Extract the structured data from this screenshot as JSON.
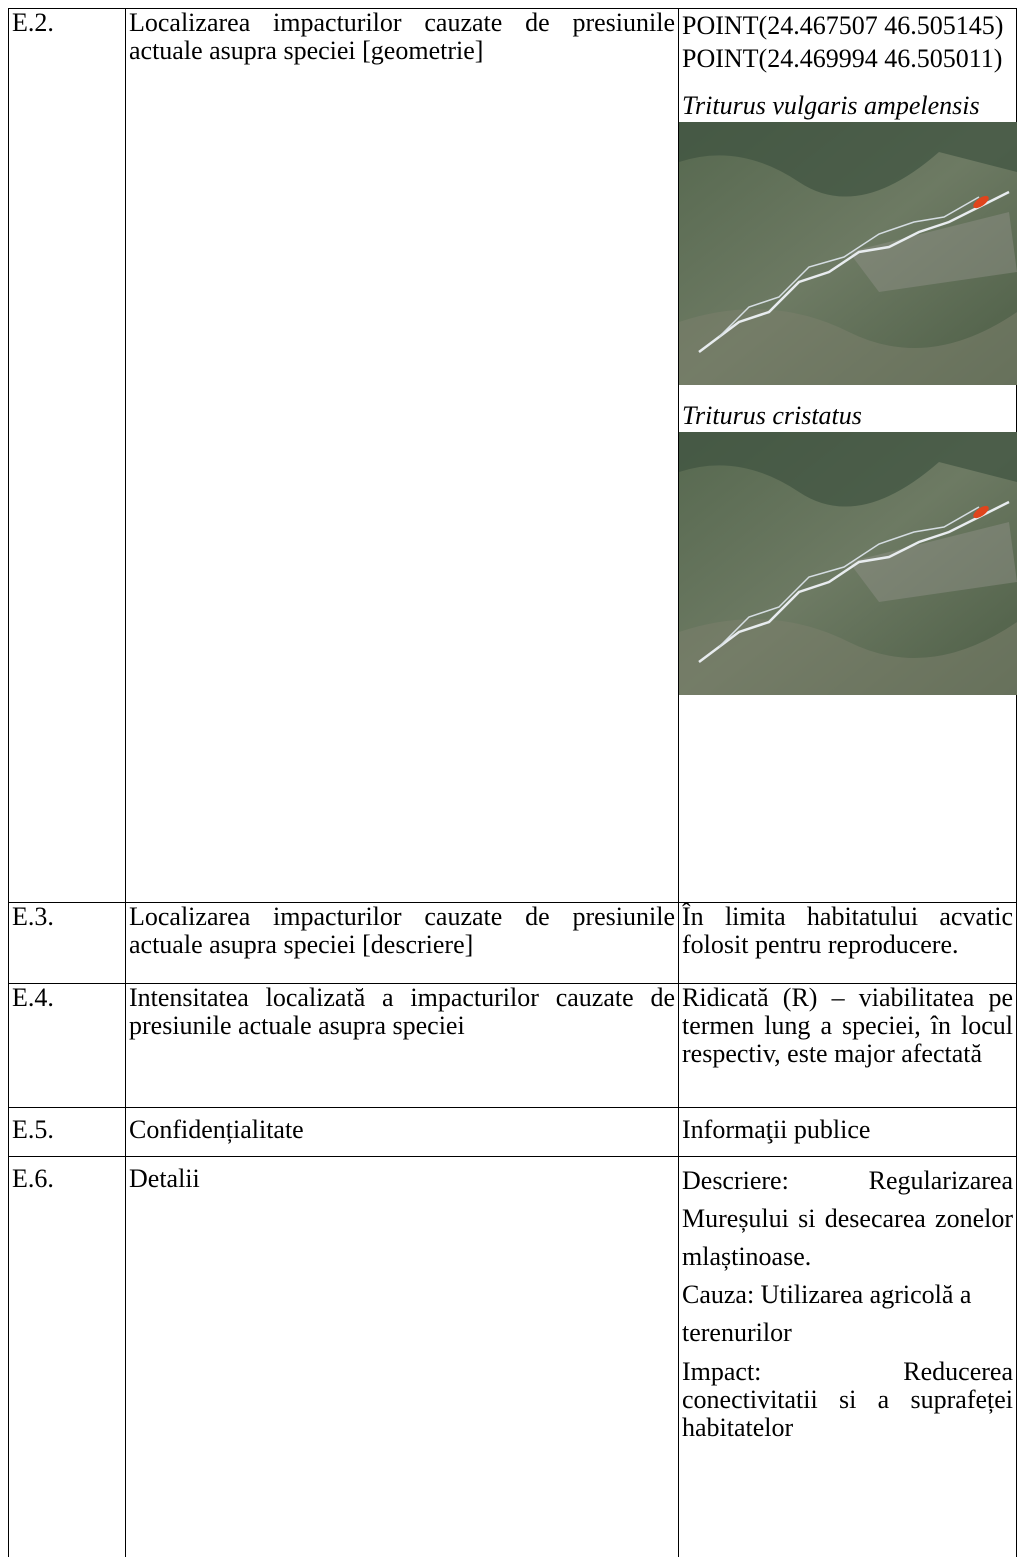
{
  "table": {
    "rows": [
      {
        "code": "E.2.",
        "label": "Localizarea impacturilor cauzate de presiunile actuale asupra speciei [geometrie]",
        "points": [
          "POINT(24.467507 46.505145)",
          "POINT(24.469994 46.505011)"
        ],
        "maps": [
          {
            "caption": "Triturus vulgaris ampelensis"
          },
          {
            "caption": "Triturus cristatus"
          }
        ]
      },
      {
        "code": "E.3.",
        "label": "Localizarea impacturilor cauzate de presiunile actuale asupra speciei [descriere]",
        "value": "În limita habitatului acvatic folosit pentru reproducere."
      },
      {
        "code": "E.4.",
        "label": "Intensitatea localizată a impacturilor cauzate de presiunile actuale asupra speciei",
        "value": "Ridicată (R) – viabilitatea pe termen lung a speciei, în locul respectiv, este major afectată"
      },
      {
        "code": "E.5.",
        "label": "Confidențialitate",
        "value": "Informaţii publice"
      },
      {
        "code": "E.6.",
        "label": "Detalii",
        "details": [
          "Descriere: Regularizarea Mureșului si desecarea zonelor mlaștinoase.",
          "Cauza: Utilizarea agricolă a terenurilor",
          "Impact: Reducerea conectivitatii si a suprafeței habitatelor"
        ]
      }
    ]
  }
}
